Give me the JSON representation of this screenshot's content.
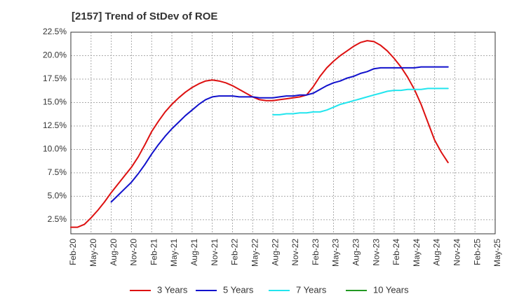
{
  "chart_data": {
    "type": "line",
    "title": "[2157]  Trend of StDev of ROE",
    "xlabel": "",
    "ylabel": "",
    "x_tick_labels": [
      "Feb-20",
      "May-20",
      "Aug-20",
      "Nov-20",
      "Feb-21",
      "May-21",
      "Aug-21",
      "Nov-21",
      "Feb-22",
      "May-22",
      "Aug-22",
      "Nov-22",
      "Feb-23",
      "May-23",
      "Aug-23",
      "Nov-23",
      "Feb-24",
      "May-24",
      "Aug-24",
      "Nov-24",
      "Feb-25",
      "May-25"
    ],
    "y_tick_labels": [
      "2.5%",
      "5.0%",
      "7.5%",
      "10.0%",
      "12.5%",
      "15.0%",
      "17.5%",
      "20.0%",
      "22.5%"
    ],
    "y_tick_values": [
      2.5,
      5.0,
      7.5,
      10.0,
      12.5,
      15.0,
      17.5,
      20.0,
      22.5
    ],
    "ylim": [
      1.0,
      22.5
    ],
    "grid": true,
    "legend_position": "bottom",
    "series": [
      {
        "name": "3 Years",
        "color": "#dd1111",
        "values": [
          [
            0,
            1.7
          ],
          [
            1,
            1.7
          ],
          [
            2,
            2.0
          ],
          [
            3,
            2.7
          ],
          [
            4,
            3.5
          ],
          [
            5,
            4.4
          ],
          [
            6,
            5.4
          ],
          [
            7,
            6.3
          ],
          [
            8,
            7.2
          ],
          [
            9,
            8.1
          ],
          [
            10,
            9.2
          ],
          [
            11,
            10.5
          ],
          [
            12,
            11.9
          ],
          [
            13,
            13.0
          ],
          [
            14,
            14.0
          ],
          [
            15,
            14.8
          ],
          [
            16,
            15.5
          ],
          [
            17,
            16.1
          ],
          [
            18,
            16.6
          ],
          [
            19,
            17.0
          ],
          [
            20,
            17.3
          ],
          [
            21,
            17.4
          ],
          [
            22,
            17.3
          ],
          [
            23,
            17.1
          ],
          [
            24,
            16.8
          ],
          [
            25,
            16.4
          ],
          [
            26,
            16.0
          ],
          [
            27,
            15.6
          ],
          [
            28,
            15.3
          ],
          [
            29,
            15.2
          ],
          [
            30,
            15.2
          ],
          [
            31,
            15.3
          ],
          [
            32,
            15.4
          ],
          [
            33,
            15.5
          ],
          [
            34,
            15.6
          ],
          [
            35,
            15.8
          ],
          [
            36,
            16.7
          ],
          [
            37,
            17.8
          ],
          [
            38,
            18.7
          ],
          [
            39,
            19.4
          ],
          [
            40,
            20.0
          ],
          [
            41,
            20.5
          ],
          [
            42,
            21.0
          ],
          [
            43,
            21.4
          ],
          [
            44,
            21.6
          ],
          [
            45,
            21.5
          ],
          [
            46,
            21.1
          ],
          [
            47,
            20.5
          ],
          [
            48,
            19.7
          ],
          [
            49,
            18.8
          ],
          [
            50,
            17.7
          ],
          [
            51,
            16.4
          ],
          [
            52,
            14.8
          ],
          [
            53,
            12.9
          ],
          [
            54,
            11.0
          ],
          [
            55,
            9.7
          ],
          [
            56,
            8.6
          ]
        ]
      },
      {
        "name": "5 Years",
        "color": "#1111cc",
        "values": [
          [
            6,
            4.4
          ],
          [
            7,
            5.1
          ],
          [
            8,
            5.8
          ],
          [
            9,
            6.5
          ],
          [
            10,
            7.4
          ],
          [
            11,
            8.4
          ],
          [
            12,
            9.5
          ],
          [
            13,
            10.5
          ],
          [
            14,
            11.4
          ],
          [
            15,
            12.2
          ],
          [
            16,
            12.9
          ],
          [
            17,
            13.6
          ],
          [
            18,
            14.2
          ],
          [
            19,
            14.8
          ],
          [
            20,
            15.3
          ],
          [
            21,
            15.6
          ],
          [
            22,
            15.7
          ],
          [
            23,
            15.7
          ],
          [
            24,
            15.7
          ],
          [
            25,
            15.6
          ],
          [
            26,
            15.6
          ],
          [
            27,
            15.6
          ],
          [
            28,
            15.5
          ],
          [
            29,
            15.5
          ],
          [
            30,
            15.5
          ],
          [
            31,
            15.6
          ],
          [
            32,
            15.7
          ],
          [
            33,
            15.7
          ],
          [
            34,
            15.8
          ],
          [
            35,
            15.8
          ],
          [
            36,
            16.0
          ],
          [
            37,
            16.4
          ],
          [
            38,
            16.8
          ],
          [
            39,
            17.1
          ],
          [
            40,
            17.3
          ],
          [
            41,
            17.6
          ],
          [
            42,
            17.8
          ],
          [
            43,
            18.1
          ],
          [
            44,
            18.3
          ],
          [
            45,
            18.6
          ],
          [
            46,
            18.7
          ],
          [
            47,
            18.7
          ],
          [
            48,
            18.7
          ],
          [
            49,
            18.7
          ],
          [
            50,
            18.7
          ],
          [
            51,
            18.7
          ],
          [
            52,
            18.8
          ],
          [
            53,
            18.8
          ],
          [
            54,
            18.8
          ],
          [
            55,
            18.8
          ],
          [
            56,
            18.8
          ]
        ]
      },
      {
        "name": "7 Years",
        "color": "#22e5ee",
        "values": [
          [
            30,
            13.7
          ],
          [
            31,
            13.7
          ],
          [
            32,
            13.8
          ],
          [
            33,
            13.8
          ],
          [
            34,
            13.9
          ],
          [
            35,
            13.9
          ],
          [
            36,
            14.0
          ],
          [
            37,
            14.0
          ],
          [
            38,
            14.2
          ],
          [
            39,
            14.5
          ],
          [
            40,
            14.8
          ],
          [
            41,
            15.0
          ],
          [
            42,
            15.2
          ],
          [
            43,
            15.4
          ],
          [
            44,
            15.6
          ],
          [
            45,
            15.8
          ],
          [
            46,
            16.0
          ],
          [
            47,
            16.2
          ],
          [
            48,
            16.3
          ],
          [
            49,
            16.3
          ],
          [
            50,
            16.4
          ],
          [
            51,
            16.4
          ],
          [
            52,
            16.4
          ],
          [
            53,
            16.5
          ],
          [
            54,
            16.5
          ],
          [
            55,
            16.5
          ],
          [
            56,
            16.5
          ]
        ]
      },
      {
        "name": "10 Years",
        "color": "#229922",
        "values": []
      }
    ]
  }
}
